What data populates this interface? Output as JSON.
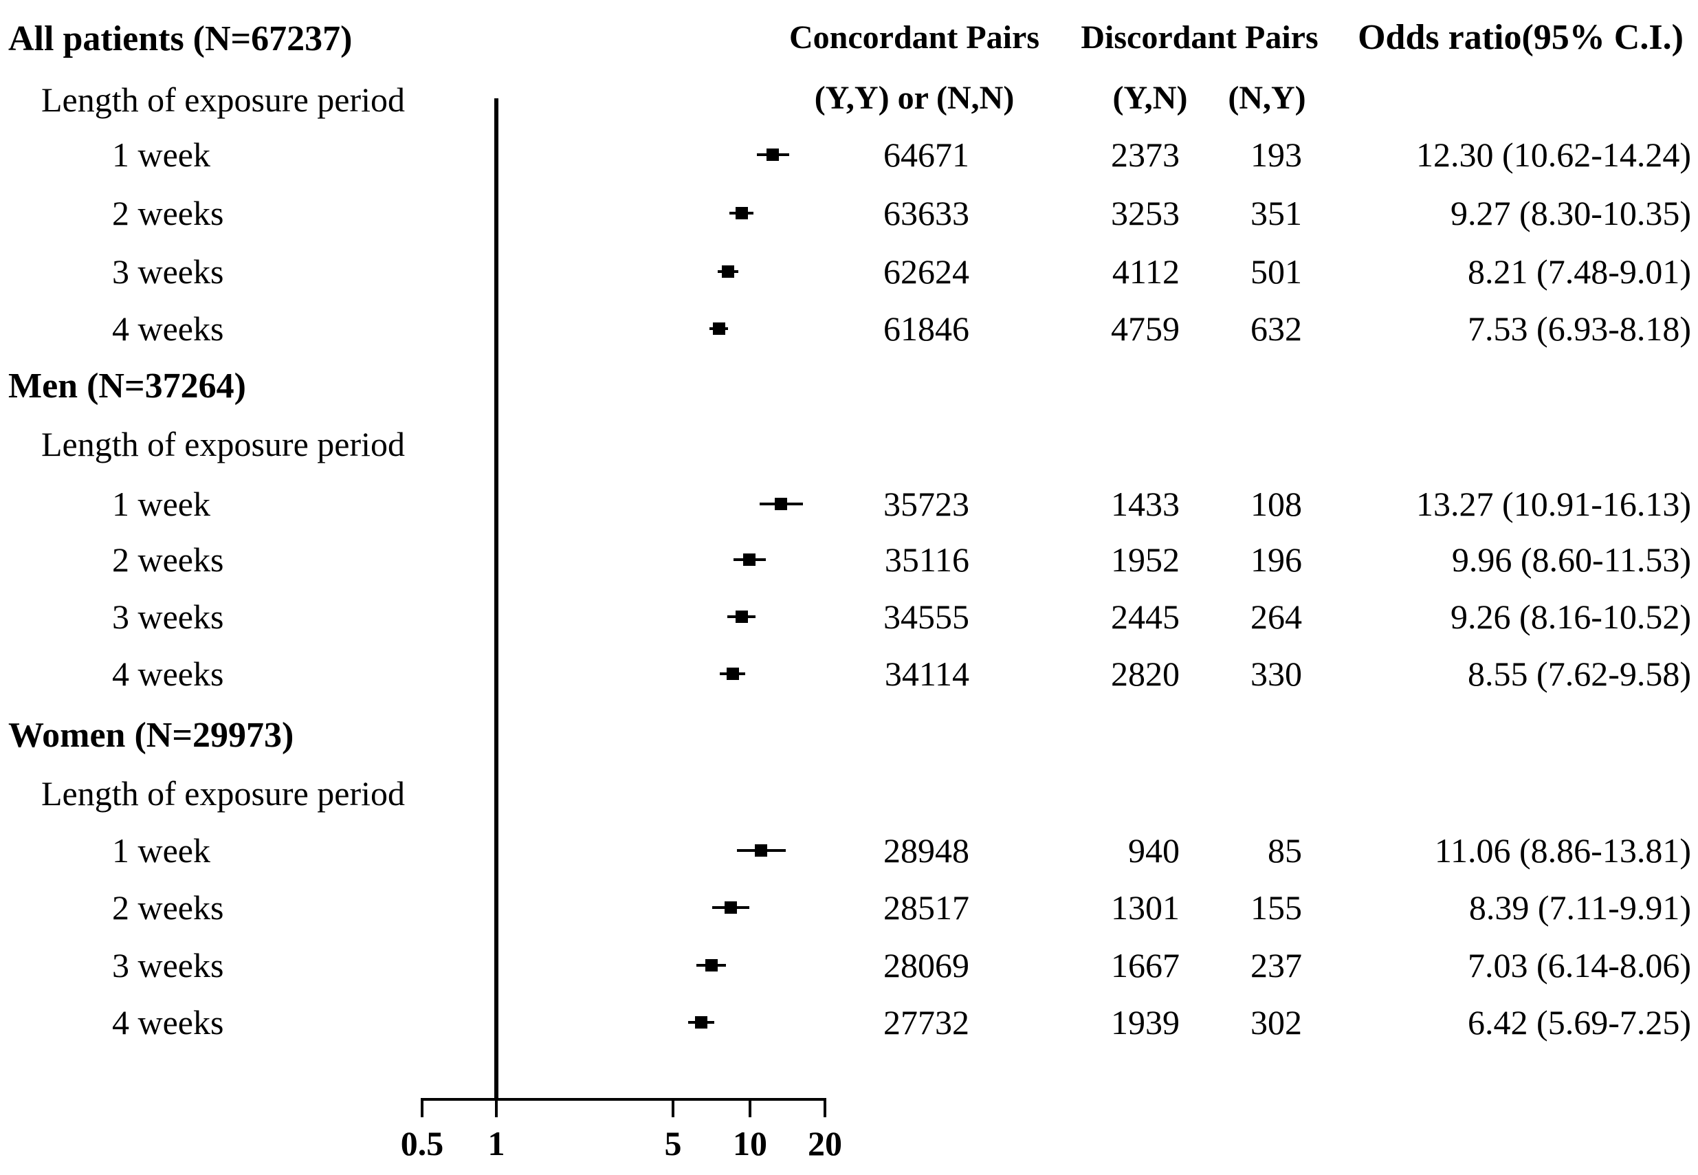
{
  "chart_data": {
    "type": "forest",
    "x_scale": "log10",
    "x_axis": {
      "ticks": [
        0.5,
        1,
        5,
        10,
        20
      ],
      "tick_labels": [
        "0.5",
        "1",
        "5",
        "10",
        "20"
      ],
      "reference_value": 1,
      "range": [
        0.5,
        20
      ],
      "grid": false
    },
    "column_headers": {
      "concordant": "Concordant Pairs",
      "concordant_sub": "(Y,Y) or (N,N)",
      "discordant": "Discordant Pairs",
      "discordant_sub_yn": "(Y,N)",
      "discordant_sub_ny": "(N,Y)",
      "odds_ratio": "Odds ratio(95% C.I.)"
    },
    "exposure_header": "Length of exposure period",
    "groups": [
      {
        "title": "All patients (N=67237)",
        "rows": [
          {
            "label": "1 week",
            "concordant": "64671",
            "discordant_yn": "2373",
            "discordant_ny": "193",
            "or": 12.3,
            "ci_low": 10.62,
            "ci_high": 14.24,
            "or_text": "12.30 (10.62-14.24)"
          },
          {
            "label": "2 weeks",
            "concordant": "63633",
            "discordant_yn": "3253",
            "discordant_ny": "351",
            "or": 9.27,
            "ci_low": 8.3,
            "ci_high": 10.35,
            "or_text": "9.27 (8.30-10.35)"
          },
          {
            "label": "3 weeks",
            "concordant": "62624",
            "discordant_yn": "4112",
            "discordant_ny": "501",
            "or": 8.21,
            "ci_low": 7.48,
            "ci_high": 9.01,
            "or_text": "8.21 (7.48-9.01)"
          },
          {
            "label": "4 weeks",
            "concordant": "61846",
            "discordant_yn": "4759",
            "discordant_ny": "632",
            "or": 7.53,
            "ci_low": 6.93,
            "ci_high": 8.18,
            "or_text": "7.53 (6.93-8.18)"
          }
        ]
      },
      {
        "title": "Men (N=37264)",
        "rows": [
          {
            "label": "1 week",
            "concordant": "35723",
            "discordant_yn": "1433",
            "discordant_ny": "108",
            "or": 13.27,
            "ci_low": 10.91,
            "ci_high": 16.13,
            "or_text": "13.27 (10.91-16.13)"
          },
          {
            "label": "2 weeks",
            "concordant": "35116",
            "discordant_yn": "1952",
            "discordant_ny": "196",
            "or": 9.96,
            "ci_low": 8.6,
            "ci_high": 11.53,
            "or_text": "9.96 (8.60-11.53)"
          },
          {
            "label": "3 weeks",
            "concordant": "34555",
            "discordant_yn": "2445",
            "discordant_ny": "264",
            "or": 9.26,
            "ci_low": 8.16,
            "ci_high": 10.52,
            "or_text": "9.26 (8.16-10.52)"
          },
          {
            "label": "4 weeks",
            "concordant": "34114",
            "discordant_yn": "2820",
            "discordant_ny": "330",
            "or": 8.55,
            "ci_low": 7.62,
            "ci_high": 9.58,
            "or_text": "8.55 (7.62-9.58)"
          }
        ]
      },
      {
        "title": "Women (N=29973)",
        "rows": [
          {
            "label": "1 week",
            "concordant": "28948",
            "discordant_yn": "940",
            "discordant_ny": "85",
            "or": 11.06,
            "ci_low": 8.86,
            "ci_high": 13.81,
            "or_text": "11.06 (8.86-13.81)"
          },
          {
            "label": "2 weeks",
            "concordant": "28517",
            "discordant_yn": "1301",
            "discordant_ny": "155",
            "or": 8.39,
            "ci_low": 7.11,
            "ci_high": 9.91,
            "or_text": "8.39 (7.11-9.91)"
          },
          {
            "label": "3 weeks",
            "concordant": "28069",
            "discordant_yn": "1667",
            "discordant_ny": "237",
            "or": 7.03,
            "ci_low": 6.14,
            "ci_high": 8.06,
            "or_text": "7.03 (6.14-8.06)"
          },
          {
            "label": "4 weeks",
            "concordant": "27732",
            "discordant_yn": "1939",
            "discordant_ny": "302",
            "or": 6.42,
            "ci_low": 5.69,
            "ci_high": 7.25,
            "or_text": "6.42 (5.69-7.25)"
          }
        ]
      }
    ],
    "marker_color": "#000000",
    "background_color": "#ffffff",
    "legend": null
  }
}
